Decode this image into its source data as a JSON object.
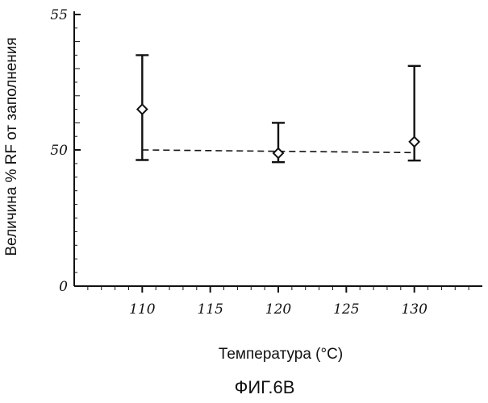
{
  "chart_data": {
    "type": "scatter",
    "xlabel": "Температура (°C)",
    "ylabel": "Величина % RF от заполнения",
    "caption": "ФИГ.6В",
    "xlim": [
      105,
      135
    ],
    "ylim": [
      0,
      55
    ],
    "x_ticks": [
      110,
      115,
      120,
      125,
      130
    ],
    "y_ticks": [
      {
        "value": 0,
        "label": "0"
      },
      {
        "value": 50,
        "label": "50"
      },
      {
        "value": 55,
        "label": "55"
      }
    ],
    "points": [
      {
        "x": 110,
        "y": 51.5,
        "err_low": 46.3,
        "err_high": 53.5
      },
      {
        "x": 120,
        "y": 48.8,
        "err_low": 45.5,
        "err_high": 51.0
      },
      {
        "x": 130,
        "y": 50.3,
        "err_low": 46.1,
        "err_high": 53.1
      }
    ],
    "trendline": {
      "x": [
        110,
        130
      ],
      "y": [
        50.0,
        49.0
      ],
      "style": "dashed"
    },
    "grid": false,
    "legend": "none"
  }
}
